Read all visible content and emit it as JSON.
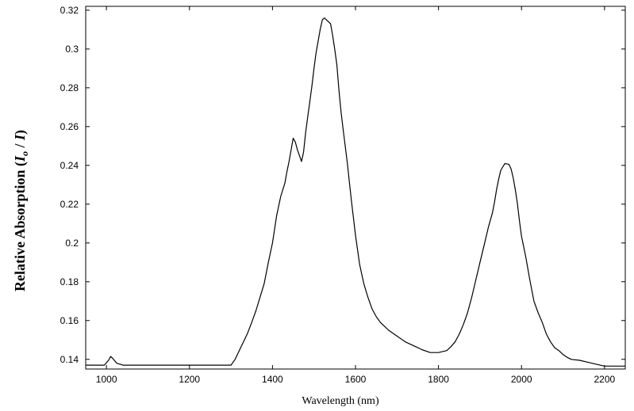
{
  "chart_data": {
    "type": "line",
    "title": "",
    "xlabel": "Wavelength (nm)",
    "ylabel": {
      "prefix": "Relative Absorption (",
      "var1": "I",
      "sub": "o",
      "sep": " / ",
      "var2": "I",
      "suffix": ")"
    },
    "xlim": [
      950,
      2250
    ],
    "ylim": [
      0.135,
      0.322
    ],
    "xticks": [
      1000,
      1200,
      1400,
      1600,
      1800,
      2000,
      2200
    ],
    "yticks": [
      0.14,
      0.16,
      0.18,
      0.2,
      0.22,
      0.24,
      0.26,
      0.28,
      0.3,
      0.32
    ],
    "xtick_labels": [
      "1000",
      "1200",
      "1400",
      "1600",
      "1800",
      "2000",
      "2200"
    ],
    "ytick_labels": [
      "0.14",
      "0.16",
      "0.18",
      "0.2",
      "0.22",
      "0.24",
      "0.26",
      "0.28",
      "0.3",
      "0.32"
    ],
    "grid": false,
    "legend": "none",
    "series": [
      {
        "color": "#000000",
        "x": [
          950,
          995,
          1005,
          1010,
          1015,
          1025,
          1040,
          1100,
          1200,
          1250,
          1300,
          1310,
          1320,
          1330,
          1340,
          1350,
          1360,
          1370,
          1380,
          1390,
          1400,
          1410,
          1420,
          1430,
          1435,
          1440,
          1445,
          1450,
          1455,
          1460,
          1465,
          1470,
          1475,
          1480,
          1485,
          1490,
          1495,
          1500,
          1505,
          1510,
          1515,
          1520,
          1525,
          1530,
          1535,
          1540,
          1545,
          1550,
          1555,
          1560,
          1565,
          1570,
          1580,
          1590,
          1600,
          1610,
          1620,
          1630,
          1640,
          1650,
          1660,
          1670,
          1680,
          1700,
          1720,
          1740,
          1760,
          1780,
          1800,
          1820,
          1830,
          1840,
          1850,
          1860,
          1870,
          1880,
          1890,
          1900,
          1910,
          1920,
          1930,
          1935,
          1940,
          1945,
          1950,
          1960,
          1970,
          1975,
          1980,
          1985,
          1990,
          1995,
          2000,
          2010,
          2020,
          2030,
          2040,
          2050,
          2060,
          2070,
          2080,
          2090,
          2100,
          2110,
          2120,
          2140,
          2160,
          2180,
          2200,
          2220,
          2250
        ],
        "y": [
          0.137,
          0.137,
          0.1395,
          0.1415,
          0.1405,
          0.138,
          0.137,
          0.137,
          0.137,
          0.137,
          0.137,
          0.14,
          0.1445,
          0.149,
          0.1535,
          0.159,
          0.165,
          0.172,
          0.179,
          0.19,
          0.2,
          0.214,
          0.224,
          0.231,
          0.237,
          0.242,
          0.248,
          0.254,
          0.252,
          0.248,
          0.245,
          0.242,
          0.247,
          0.257,
          0.265,
          0.273,
          0.281,
          0.29,
          0.298,
          0.304,
          0.31,
          0.315,
          0.316,
          0.315,
          0.314,
          0.313,
          0.307,
          0.3,
          0.292,
          0.279,
          0.268,
          0.259,
          0.242,
          0.222,
          0.204,
          0.189,
          0.179,
          0.172,
          0.166,
          0.162,
          0.159,
          0.157,
          0.155,
          0.152,
          0.149,
          0.147,
          0.145,
          0.1435,
          0.1435,
          0.1445,
          0.1465,
          0.149,
          0.153,
          0.158,
          0.164,
          0.172,
          0.181,
          0.19,
          0.199,
          0.208,
          0.2155,
          0.221,
          0.2275,
          0.233,
          0.2375,
          0.241,
          0.2405,
          0.238,
          0.2335,
          0.2275,
          0.2205,
          0.2115,
          0.2035,
          0.193,
          0.181,
          0.17,
          0.164,
          0.159,
          0.153,
          0.149,
          0.146,
          0.1445,
          0.1425,
          0.141,
          0.14,
          0.1395,
          0.1385,
          0.1375,
          0.1365,
          0.1365,
          0.1365
        ]
      }
    ]
  }
}
